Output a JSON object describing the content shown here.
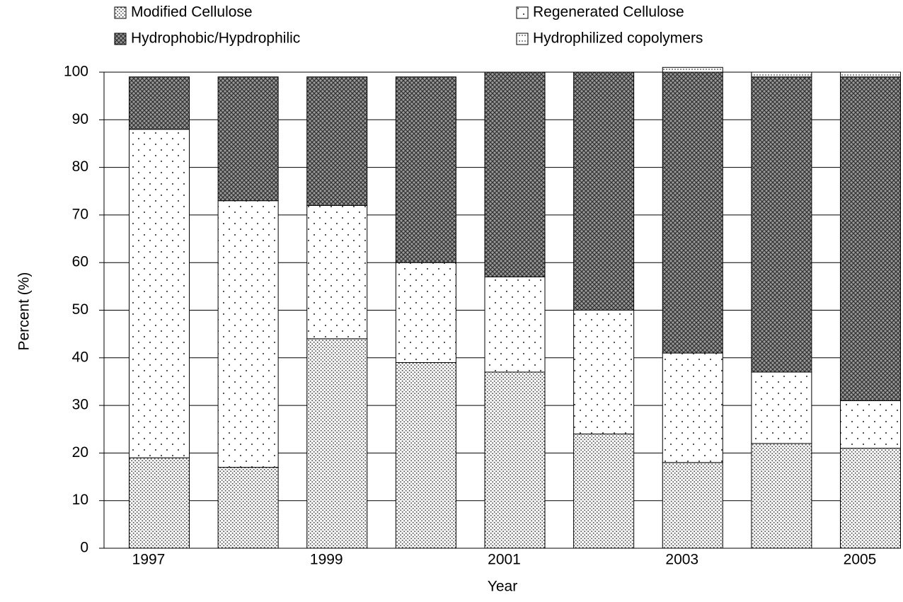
{
  "chart_data": {
    "type": "stacked_bar",
    "x_label": "Year",
    "y_label": "Percent (%)",
    "categories": [
      "1997",
      null,
      "1999",
      null,
      "2001",
      null,
      "2003",
      null,
      "2005"
    ],
    "series": [
      {
        "name": "Modified Cellulose",
        "values": [
          19,
          17,
          44,
          39,
          37,
          24,
          18,
          22,
          21
        ]
      },
      {
        "name": "Regenerated Cellulose",
        "values": [
          69,
          56,
          28,
          21,
          20,
          26,
          23,
          15,
          10
        ]
      },
      {
        "name": "Hydrophobic/Hypdrophilic",
        "values": [
          11,
          26,
          27,
          39,
          43,
          50,
          59,
          62,
          68
        ]
      },
      {
        "name": "Hydrophilized copolymers",
        "values": [
          0,
          0,
          0,
          0,
          0,
          0,
          1,
          1,
          1
        ]
      }
    ],
    "ylim": [
      0,
      100
    ],
    "yticks": [
      0,
      10,
      20,
      30,
      40,
      50,
      60,
      70,
      80,
      90,
      100
    ],
    "grid": true
  }
}
